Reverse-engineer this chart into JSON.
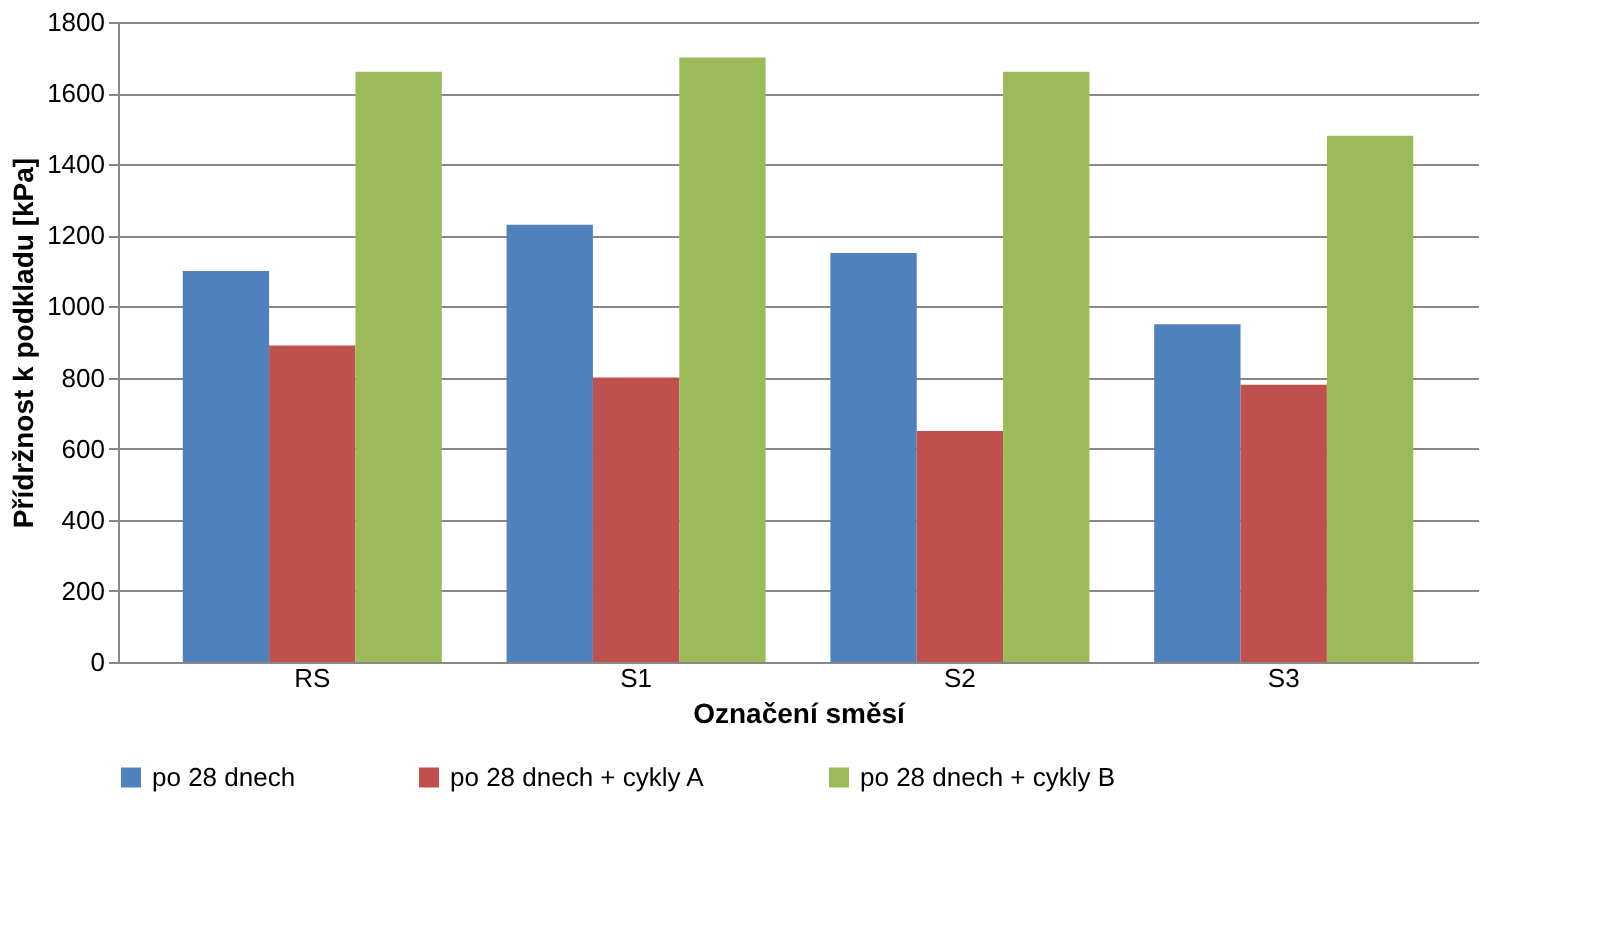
{
  "chart_data": {
    "type": "bar",
    "xlabel": "Označení směsí",
    "ylabel": "Přídržnost k podkladu [kPa]",
    "categories": [
      "RS",
      "S1",
      "S2",
      "S3"
    ],
    "series": [
      {
        "name": "po 28 dnech",
        "color": "#4f81bd",
        "values": [
          1100,
          1230,
          1150,
          950
        ]
      },
      {
        "name": "po 28 dnech + cykly A",
        "color": "#c0504d",
        "values": [
          890,
          800,
          650,
          780
        ]
      },
      {
        "name": "po 28 dnech + cykly B",
        "color": "#9bbb59",
        "values": [
          1660,
          1700,
          1660,
          1480
        ]
      }
    ],
    "ylim": [
      0,
      1800
    ],
    "yticks": [
      0,
      200,
      400,
      600,
      800,
      1000,
      1200,
      1400,
      1600,
      1800
    ],
    "grid": "y",
    "legend": "bottom"
  }
}
